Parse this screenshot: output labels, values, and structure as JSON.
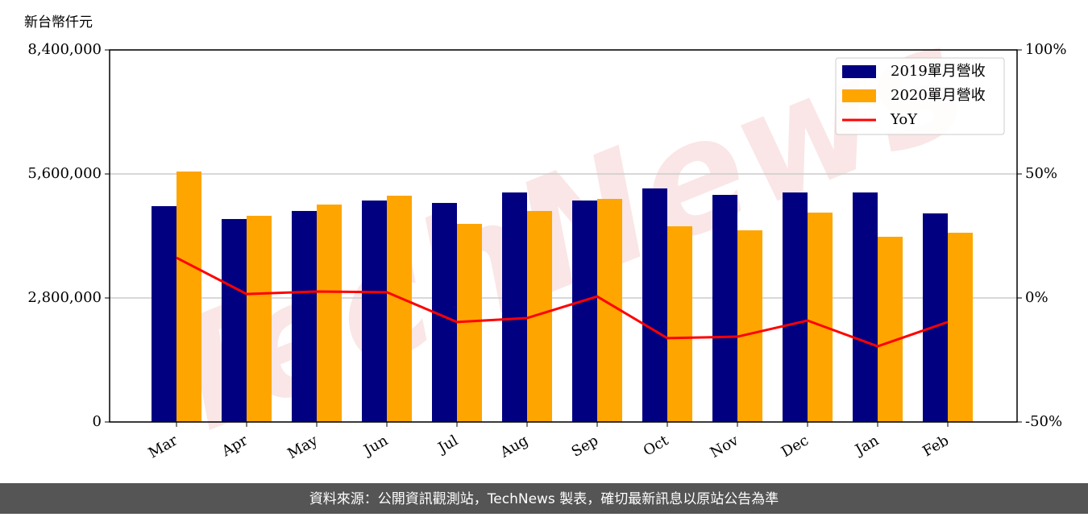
{
  "chart_data": {
    "type": "bar",
    "y_label": "新台幣仟元",
    "watermark": "TechNews",
    "footer": "資料來源：公開資訊觀測站，TechNews 製表，確切最新訊息以原站公告為準",
    "categories": [
      "Mar",
      "Apr",
      "May",
      "Jun",
      "Jul",
      "Aug",
      "Sep",
      "Oct",
      "Nov",
      "Dec",
      "Jan",
      "Feb"
    ],
    "series": [
      {
        "name": "2019單月營收",
        "color": "#000080",
        "type": "bar",
        "values": [
          4873000,
          4582000,
          4764000,
          5000000,
          4945000,
          5182000,
          5000000,
          5273000,
          5127000,
          5182000,
          5182000,
          4709000
        ]
      },
      {
        "name": "2020單月營收",
        "color": "#ffa500",
        "type": "bar",
        "values": [
          5655000,
          4655000,
          4909000,
          5109000,
          4473000,
          4764000,
          5036000,
          4418000,
          4327000,
          4727000,
          4182000,
          4273000
        ]
      },
      {
        "name": "YoY",
        "color": "#ff0000",
        "type": "line",
        "axis": "y2",
        "values": [
          16.2,
          1.6,
          2.6,
          2.3,
          -9.7,
          -8.1,
          0.6,
          -16.2,
          -15.6,
          -9.1,
          -19.5,
          -9.7
        ]
      }
    ],
    "ylim": [
      0,
      8400000
    ],
    "yticks": [
      0,
      {
        "value": 2800000,
        "label": "2,800,000"
      },
      {
        "value": 5600000,
        "label": "5,600,000"
      },
      {
        "value": 8400000,
        "label": "8,400,000"
      }
    ],
    "y2lim": [
      -50,
      100
    ],
    "y2ticks": [
      {
        "value": -50,
        "label": "-50%"
      },
      {
        "value": 0,
        "label": "0%"
      },
      {
        "value": 50,
        "label": "50%"
      },
      {
        "value": 100,
        "label": "100%"
      }
    ],
    "grid": true,
    "legend": "upper right"
  }
}
